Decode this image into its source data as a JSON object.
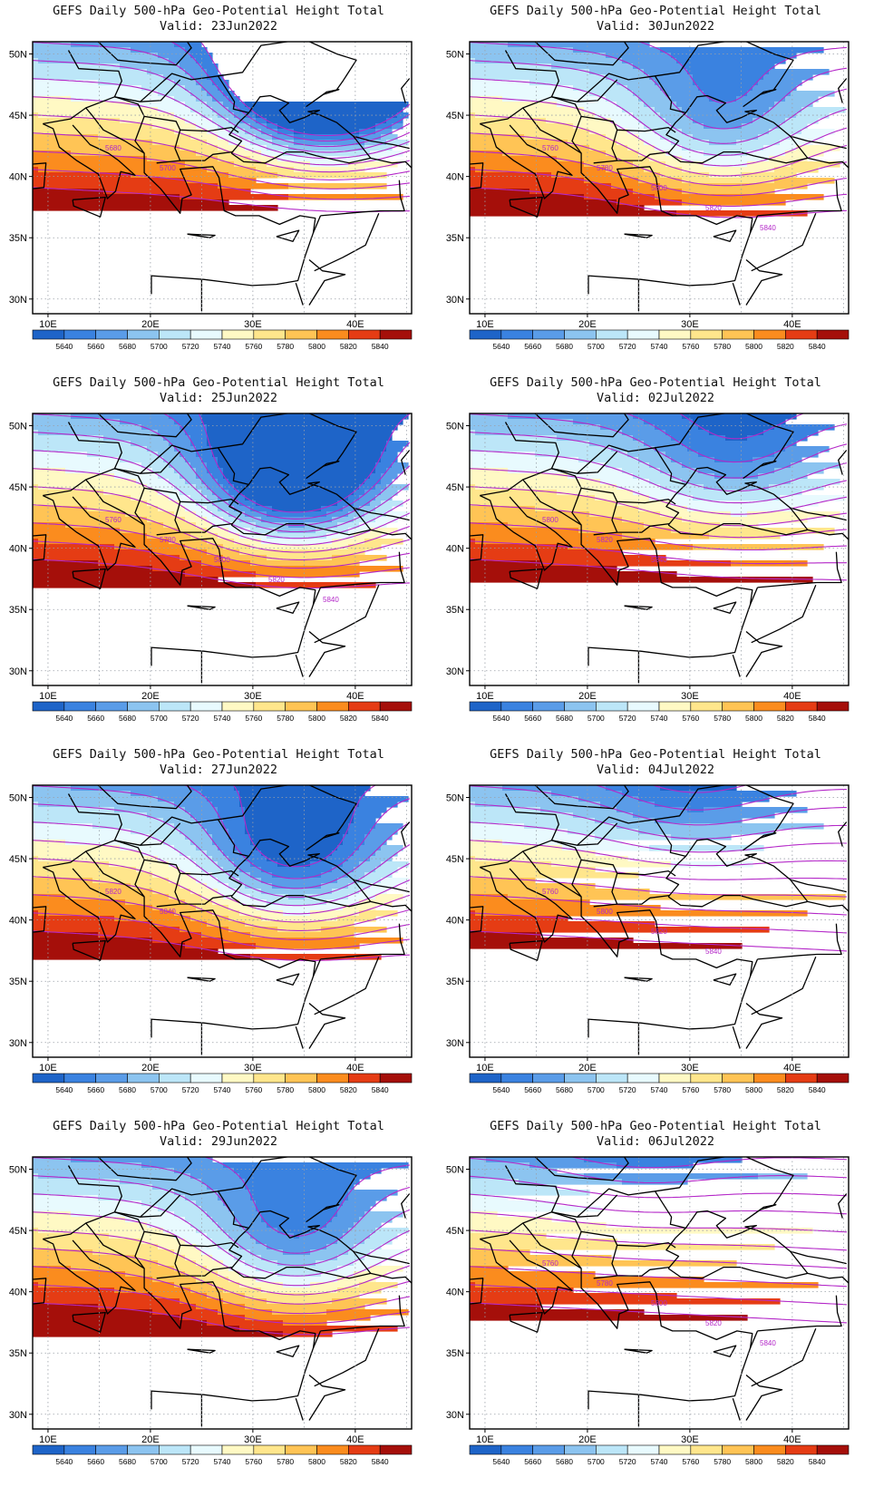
{
  "figure": {
    "common_title": "GEFS Daily 500-hPa Geo-Potential Height Total",
    "valid_prefix": "Valid:",
    "lat_ticks": [
      "30N",
      "35N",
      "40N",
      "45N",
      "50N"
    ],
    "lon_ticks": [
      "10E",
      "20E",
      "30E",
      "40E"
    ],
    "colorbar": {
      "labels": [
        "5640",
        "5660",
        "5680",
        "5700",
        "5720",
        "5740",
        "5760",
        "5780",
        "5800",
        "5820",
        "5840"
      ],
      "colors": [
        "#1e64c8",
        "#3a82e0",
        "#5a9ce8",
        "#8cc4f0",
        "#bce6f8",
        "#e8fafe",
        "#fff9c4",
        "#ffe68c",
        "#ffc455",
        "#fb8c1e",
        "#e53c14",
        "#a50f0a"
      ]
    },
    "contour_color": "#b428c8"
  },
  "panels": [
    {
      "valid": "Valid: 23Jun2022",
      "trough_strength": 1.0,
      "trough_lon": 37,
      "trough_lat": 48,
      "labels": [
        "5680",
        "5700"
      ]
    },
    {
      "valid": "Valid: 30Jun2022",
      "trough_strength": 0.35,
      "trough_lon": 33,
      "trough_lat": 44,
      "labels": [
        "5760",
        "5780",
        "5800",
        "5820",
        "5840"
      ]
    },
    {
      "valid": "Valid: 25Jun2022",
      "trough_strength": 0.75,
      "trough_lon": 34,
      "trough_lat": 46,
      "labels": [
        "5760",
        "5780",
        "5800",
        "5820",
        "5840"
      ]
    },
    {
      "valid": "Valid: 02Jul2022",
      "trough_strength": 0.25,
      "trough_lon": 34,
      "trough_lat": 47,
      "labels": [
        "5800",
        "5820",
        "5840"
      ]
    },
    {
      "valid": "Valid: 27Jun2022",
      "trough_strength": 0.5,
      "trough_lon": 34,
      "trough_lat": 45,
      "labels": [
        "5820",
        "5840"
      ]
    },
    {
      "valid": "Valid: 04Jul2022",
      "trough_strength": 0.15,
      "trough_lon": 30,
      "trough_lat": 50,
      "labels": [
        "5760",
        "5800",
        "5820",
        "5840"
      ]
    },
    {
      "valid": "Valid: 29Jun2022",
      "trough_strength": 0.4,
      "trough_lon": 34,
      "trough_lat": 44,
      "labels": []
    },
    {
      "valid": "Valid: 06Jul2022",
      "trough_strength": 0.1,
      "trough_lon": 25,
      "trough_lat": 52,
      "labels": [
        "5760",
        "5780",
        "5800",
        "5820",
        "5840"
      ]
    }
  ]
}
